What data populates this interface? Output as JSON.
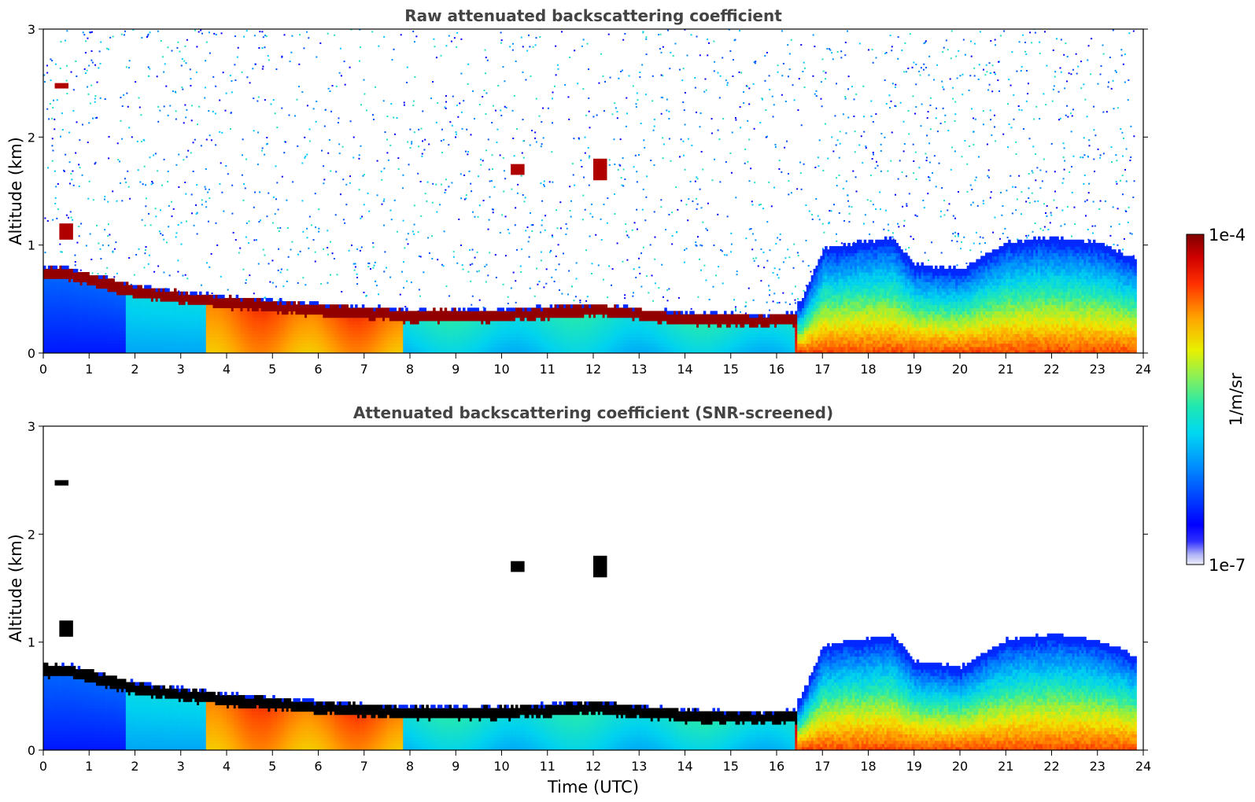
{
  "figure": {
    "x_ticks": [
      "0",
      "1",
      "2",
      "3",
      "4",
      "5",
      "6",
      "7",
      "8",
      "9",
      "10",
      "11",
      "12",
      "13",
      "14",
      "15",
      "16",
      "17",
      "18",
      "19",
      "20",
      "21",
      "22",
      "23",
      "24"
    ],
    "y_ticks": [
      "0",
      "1",
      "2",
      "3"
    ]
  },
  "chart_data": [
    {
      "type": "heatmap",
      "title": "Raw attenuated backscattering coefficient",
      "xlabel": "",
      "ylabel": "Altitude (km)",
      "xlim": [
        0,
        24
      ],
      "ylim": [
        0,
        3
      ],
      "z_range": [
        1e-07,
        0.0001
      ],
      "z_scale": "log",
      "description_features": {
        "boundary_layer_top_km": [
          [
            0.5,
            0.72
          ],
          [
            2,
            0.55
          ],
          [
            4,
            0.45
          ],
          [
            6,
            0.38
          ],
          [
            8,
            0.33
          ],
          [
            10,
            0.33
          ],
          [
            12,
            0.38
          ],
          [
            14,
            0.3
          ],
          [
            16,
            0.28
          ],
          [
            16.4,
            0.3
          ]
        ],
        "afternoon_mixing_top_km": [
          [
            16.5,
            0.4
          ],
          [
            17,
            0.9
          ],
          [
            18.5,
            1.0
          ],
          [
            19,
            0.75
          ],
          [
            20,
            0.7
          ],
          [
            21,
            0.95
          ],
          [
            22,
            1.0
          ],
          [
            23,
            0.95
          ],
          [
            23.8,
            0.8
          ]
        ]
      }
    },
    {
      "type": "heatmap",
      "title": "Attenuated backscattering coefficient (SNR-screened)",
      "xlabel": "Time (UTC)",
      "ylabel": "Altitude (km)",
      "xlim": [
        0,
        24
      ],
      "ylim": [
        0,
        3
      ],
      "z_range": [
        1e-07,
        0.0001
      ],
      "z_scale": "log"
    }
  ],
  "colorbar": {
    "label": "1/m/sr",
    "max_label": "1e-4",
    "min_label": "1e-7",
    "colors": [
      "#e6e8f8",
      "#9aa0f0",
      "#0000ff",
      "#0070ff",
      "#00c8ff",
      "#10e0c0",
      "#60f080",
      "#d8f000",
      "#ffb000",
      "#ff5000",
      "#e00000",
      "#800000"
    ]
  }
}
